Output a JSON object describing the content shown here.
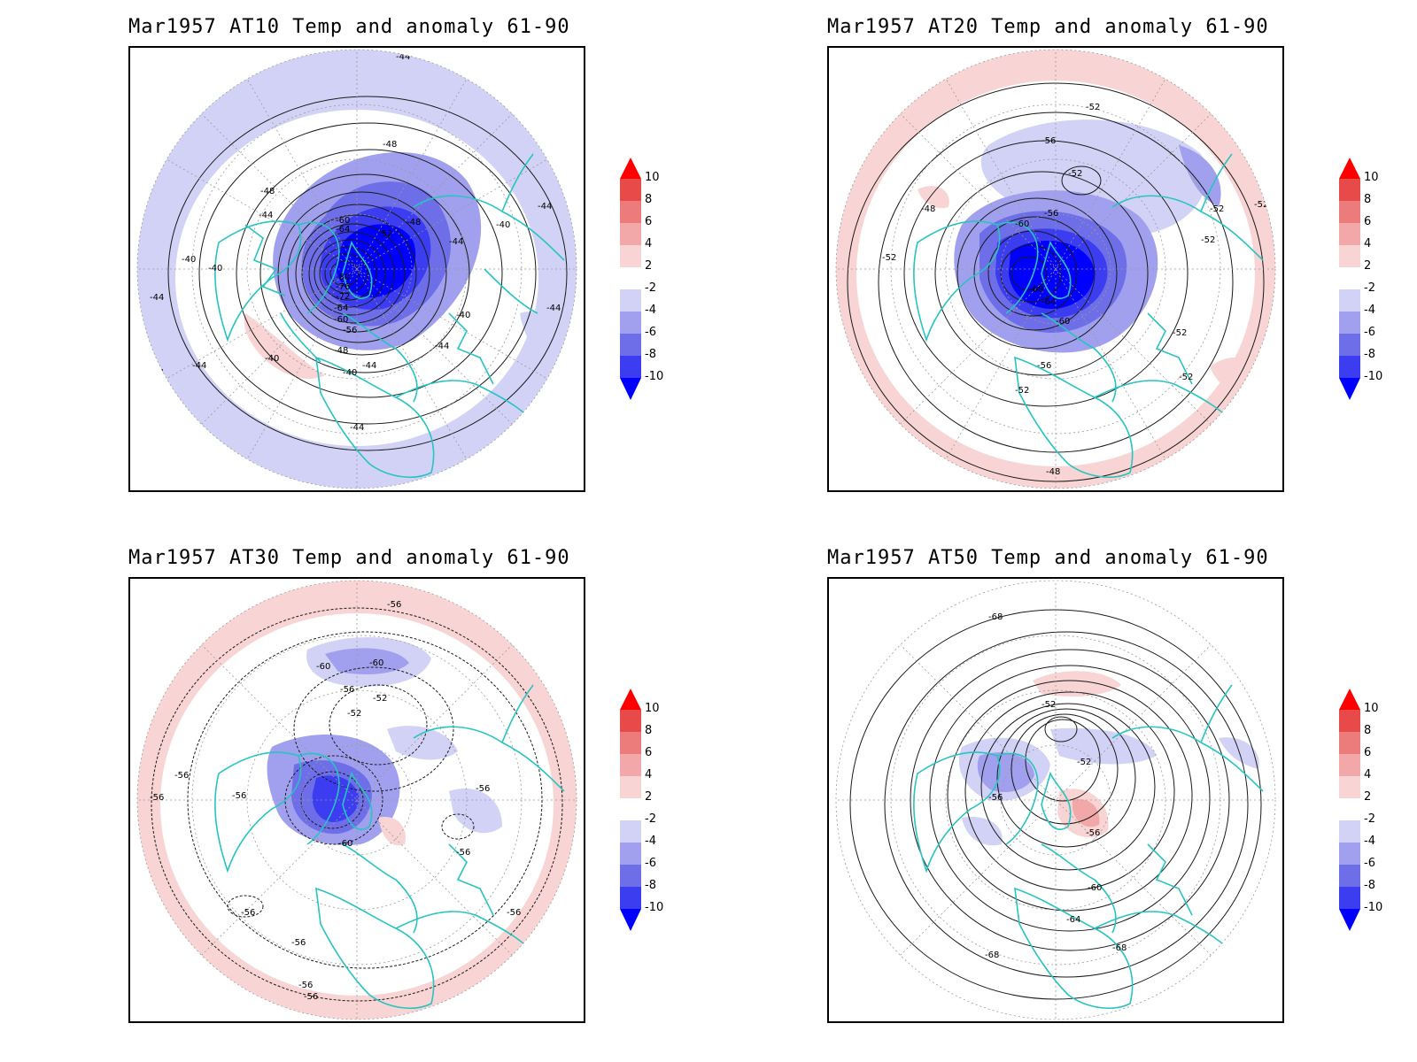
{
  "colors": {
    "coastline": "#27c4c0",
    "grid": "#9a9a9a",
    "contour": "#1a1a1a",
    "anomaly_scale": [
      "#0000ff",
      "#3c3cf0",
      "#6e6ee8",
      "#a0a0ee",
      "#d2d2f6",
      "#ffffff",
      "#f8d4d4",
      "#f2a8a8",
      "#ec7c7c",
      "#e84a4a",
      "#ff0000"
    ]
  },
  "colorbar": {
    "labels": [
      "10",
      "8",
      "6",
      "4",
      "2",
      "-2",
      "-4",
      "-6",
      "-8",
      "-10"
    ]
  },
  "panels": [
    {
      "title": "Mar1957 AT10 Temp and anomaly 61-90",
      "contour_labels": [
        "-44",
        "-48",
        "-48",
        "-44",
        "-40",
        "-40",
        "-44",
        "-60",
        "-64",
        "-52",
        "-48",
        "-44",
        "-40",
        "-44",
        "-80",
        "-76",
        "-72",
        "-64",
        "-60",
        "-56",
        "-48",
        "-44",
        "-40",
        "-40",
        "-44",
        "-44",
        "-40",
        "-44",
        "-44",
        "-44"
      ]
    },
    {
      "title": "Mar1957 AT20 Temp and anomaly 61-90",
      "contour_labels": [
        "-56",
        "-52",
        "-48",
        "-60",
        "-56",
        "-52",
        "-52",
        "-52",
        "-52",
        "-52",
        "-68",
        "-64",
        "-60",
        "-56",
        "-52",
        "-52",
        "-52",
        "-48"
      ]
    },
    {
      "title": "Mar1957 AT30 Temp and anomaly 61-90",
      "contour_labels": [
        "-56",
        "-60",
        "-60",
        "-56",
        "-52",
        "-52",
        "-56",
        "-56",
        "-56",
        "-56",
        "-60",
        "-56",
        "-56",
        "-56",
        "-56",
        "-56",
        "-56"
      ]
    },
    {
      "title": "Mar1957 AT50 Temp and anomaly 61-90",
      "contour_labels": [
        "-68",
        "-52",
        "-52",
        "-56",
        "-56",
        "-60",
        "-64",
        "-68",
        "-68"
      ]
    }
  ]
}
